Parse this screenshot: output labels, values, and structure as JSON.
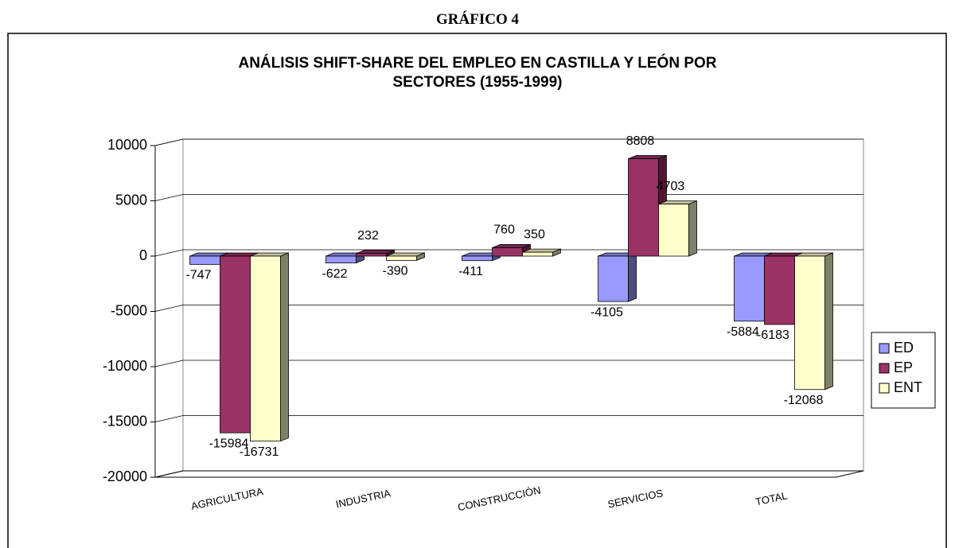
{
  "heading": "GRÁFICO 4",
  "chart_data": {
    "type": "bar",
    "title": "ANÁLISIS SHIFT-SHARE DEL EMPLEO EN CASTILLA Y LEÓN POR SECTORES (1955-1999)",
    "categories": [
      "AGRICULTURA",
      "INDUSTRIA",
      "CONSTRUCCIÓN",
      "SERVICIOS",
      "TOTAL"
    ],
    "series": [
      {
        "name": "ED",
        "color": "#9999ff",
        "values": [
          -747,
          -622,
          -411,
          -4105,
          -5884
        ]
      },
      {
        "name": "EP",
        "color": "#993366",
        "values": [
          -15984,
          232,
          760,
          8808,
          -6183
        ]
      },
      {
        "name": "ENT",
        "color": "#ffffcc",
        "values": [
          -16731,
          -390,
          350,
          4703,
          -12068
        ]
      }
    ],
    "ylim": [
      -20000,
      10000
    ],
    "yticks": [
      -20000,
      -15000,
      -10000,
      -5000,
      0,
      5000,
      10000
    ],
    "grid": true,
    "legend": "right"
  }
}
